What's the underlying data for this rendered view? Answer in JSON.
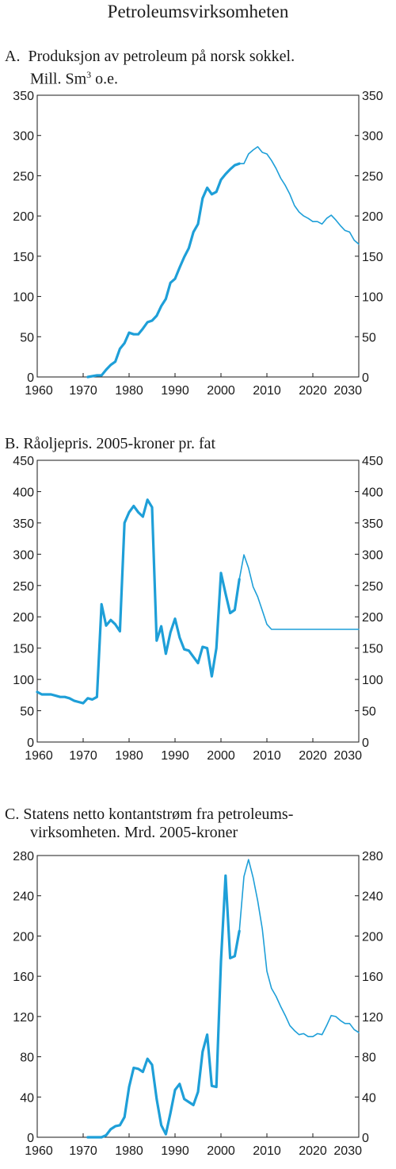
{
  "title": "Petroleumsvirksomheten",
  "colors": {
    "series": "#1e9fd8",
    "axis": "#1a1a1a"
  },
  "chart_data": [
    {
      "type": "line",
      "label_prefix": "A.",
      "title": "Produksjon av petroleum på norsk sokkel.",
      "subtitle_pre": "Mill. Sm",
      "subtitle_sup": "3",
      "subtitle_post": " o.e.",
      "xlim": [
        1960,
        2030
      ],
      "ylim": [
        0,
        350
      ],
      "xticks": [
        1960,
        1970,
        1980,
        1990,
        2000,
        2010,
        2020,
        2030
      ],
      "yticks": [
        0,
        50,
        100,
        150,
        200,
        250,
        300,
        350
      ],
      "series": [
        {
          "style": "historical",
          "x": [
            1971,
            1972,
            1973,
            1974,
            1975,
            1976,
            1977,
            1978,
            1979,
            1980,
            1981,
            1982,
            1983,
            1984,
            1985,
            1986,
            1987,
            1988,
            1989,
            1990,
            1991,
            1992,
            1993,
            1994,
            1995,
            1996,
            1997,
            1998,
            1999,
            2000,
            2001,
            2002,
            2003,
            2004
          ],
          "y": [
            0,
            1,
            2,
            2,
            9,
            15,
            19,
            35,
            42,
            55,
            53,
            53,
            60,
            68,
            70,
            76,
            88,
            97,
            117,
            122,
            136,
            149,
            160,
            180,
            190,
            222,
            235,
            227,
            230,
            245,
            252,
            258,
            263,
            265
          ]
        },
        {
          "style": "projection",
          "x": [
            2004,
            2005,
            2006,
            2007,
            2008,
            2009,
            2010,
            2011,
            2012,
            2013,
            2014,
            2015,
            2016,
            2017,
            2018,
            2019,
            2020,
            2021,
            2022,
            2023,
            2024,
            2025,
            2026,
            2027,
            2028,
            2029,
            2030
          ],
          "y": [
            265,
            265,
            277,
            282,
            286,
            279,
            277,
            269,
            259,
            247,
            238,
            227,
            213,
            205,
            200,
            197,
            193,
            193,
            190,
            197,
            201,
            195,
            188,
            182,
            180,
            170,
            165
          ]
        }
      ]
    },
    {
      "type": "line",
      "label_prefix": "B.",
      "title": "Råoljepris. 2005-kroner pr. fat",
      "xlim": [
        1960,
        2030
      ],
      "ylim": [
        0,
        450
      ],
      "xticks": [
        1960,
        1970,
        1980,
        1990,
        2000,
        2010,
        2020,
        2030
      ],
      "yticks": [
        0,
        50,
        100,
        150,
        200,
        250,
        300,
        350,
        400,
        450
      ],
      "series": [
        {
          "style": "historical",
          "x": [
            1960,
            1961,
            1962,
            1963,
            1964,
            1965,
            1966,
            1967,
            1968,
            1969,
            1970,
            1971,
            1972,
            1973,
            1974,
            1975,
            1976,
            1977,
            1978,
            1979,
            1980,
            1981,
            1982,
            1983,
            1984,
            1985,
            1986,
            1987,
            1988,
            1989,
            1990,
            1991,
            1992,
            1993,
            1994,
            1995,
            1996,
            1997,
            1998,
            1999,
            2000,
            2001,
            2002,
            2003,
            2004
          ],
          "y": [
            80,
            76,
            76,
            76,
            74,
            72,
            72,
            70,
            66,
            64,
            62,
            70,
            68,
            72,
            220,
            186,
            195,
            188,
            177,
            350,
            367,
            377,
            367,
            360,
            387,
            375,
            162,
            185,
            141,
            175,
            197,
            167,
            148,
            146,
            136,
            126,
            152,
            150,
            105,
            150,
            270,
            237,
            206,
            211,
            260
          ]
        },
        {
          "style": "projection",
          "x": [
            2004,
            2005,
            2006,
            2007,
            2008,
            2009,
            2010,
            2011,
            2012,
            2015,
            2020,
            2025,
            2030
          ],
          "y": [
            260,
            299,
            278,
            248,
            232,
            210,
            188,
            180,
            180,
            180,
            180,
            180,
            180
          ]
        }
      ]
    },
    {
      "type": "line",
      "label_prefix": "C.",
      "title": "Statens netto kontantstrøm fra petroleums-",
      "title2": "virksomheten. Mrd. 2005-kroner",
      "xlim": [
        1960,
        2030
      ],
      "ylim": [
        0,
        280
      ],
      "xticks": [
        1960,
        1970,
        1980,
        1990,
        2000,
        2010,
        2020,
        2030
      ],
      "yticks": [
        0,
        40,
        80,
        120,
        160,
        200,
        240,
        280
      ],
      "series": [
        {
          "style": "historical",
          "x": [
            1971,
            1972,
            1973,
            1974,
            1975,
            1976,
            1977,
            1978,
            1979,
            1980,
            1981,
            1982,
            1983,
            1984,
            1985,
            1986,
            1987,
            1988,
            1989,
            1990,
            1991,
            1992,
            1993,
            1994,
            1995,
            1996,
            1997,
            1998,
            1999,
            2000,
            2001,
            2002,
            2003,
            2004
          ],
          "y": [
            0,
            0,
            0,
            0,
            2,
            8,
            11,
            12,
            20,
            50,
            69,
            68,
            65,
            78,
            72,
            38,
            12,
            3,
            24,
            47,
            53,
            38,
            35,
            32,
            45,
            85,
            102,
            51,
            50,
            175,
            260,
            178,
            180,
            205
          ]
        },
        {
          "style": "projection",
          "x": [
            2004,
            2005,
            2006,
            2007,
            2008,
            2009,
            2010,
            2011,
            2012,
            2013,
            2014,
            2015,
            2016,
            2017,
            2018,
            2019,
            2020,
            2021,
            2022,
            2023,
            2024,
            2025,
            2026,
            2027,
            2028,
            2029,
            2030
          ],
          "y": [
            205,
            259,
            276,
            258,
            235,
            207,
            165,
            148,
            140,
            130,
            121,
            111,
            106,
            102,
            103,
            100,
            100,
            103,
            102,
            111,
            121,
            120,
            116,
            113,
            113,
            107,
            104
          ]
        }
      ]
    }
  ]
}
